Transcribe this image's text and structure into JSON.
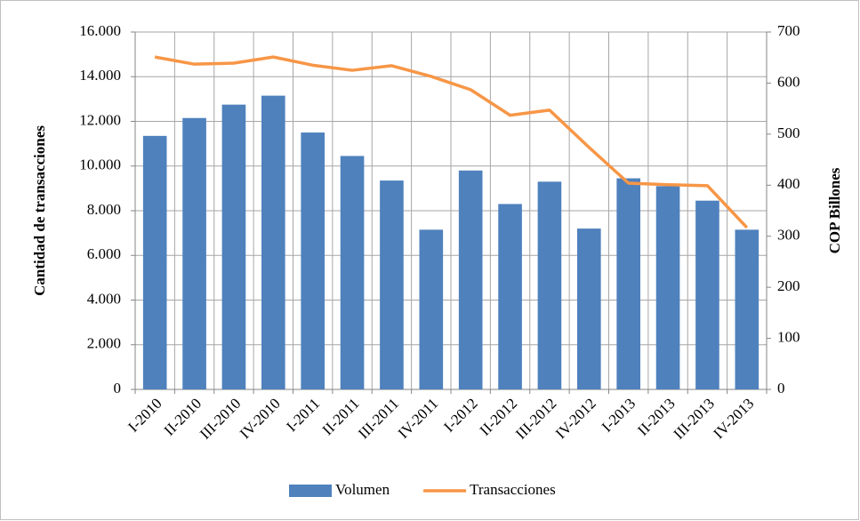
{
  "chart_data": {
    "type": "bar",
    "categories": [
      "I-2010",
      "II-2010",
      "III-2010",
      "IV-2010",
      "I-2011",
      "II-2011",
      "III-2011",
      "IV-2011",
      "I-2012",
      "II-2012",
      "III-2012",
      "IV-2012",
      "I-2013",
      "II-2013",
      "III-2013",
      "IV-2013"
    ],
    "series": [
      {
        "name": "Volumen",
        "type": "bar",
        "color": "#4f81bd",
        "values": [
          11350,
          12150,
          12750,
          13150,
          11500,
          10450,
          9350,
          7150,
          9800,
          8300,
          9300,
          7200,
          9450,
          9100,
          8450,
          7150
        ]
      },
      {
        "name": "Transacciones",
        "type": "line",
        "axis": "y2",
        "color": "#f79646",
        "values": [
          651,
          637,
          639,
          651,
          635,
          625,
          634,
          613,
          587,
          537,
          547,
          474,
          404,
          401,
          399,
          317
        ]
      }
    ],
    "y_label": "Cantidad de transacciones",
    "y2_label": "COP Billones",
    "ylim": [
      0,
      16000
    ],
    "yticks": [
      0,
      {
        "value": 2000,
        "label": "2.000"
      },
      {
        "value": 4000,
        "label": "4.000"
      },
      {
        "value": 6000,
        "label": "6.000"
      },
      {
        "value": 8000,
        "label": "8.000"
      },
      {
        "value": 10000,
        "label": "10.000"
      },
      {
        "value": 12000,
        "label": "12.000"
      },
      {
        "value": 14000,
        "label": "14.000"
      },
      {
        "value": 16000,
        "label": "16.000"
      }
    ],
    "y2lim": [
      0,
      700
    ],
    "y2ticks": [
      0,
      100,
      200,
      300,
      400,
      500,
      600,
      700
    ],
    "grid": true,
    "legend": "bottom"
  }
}
